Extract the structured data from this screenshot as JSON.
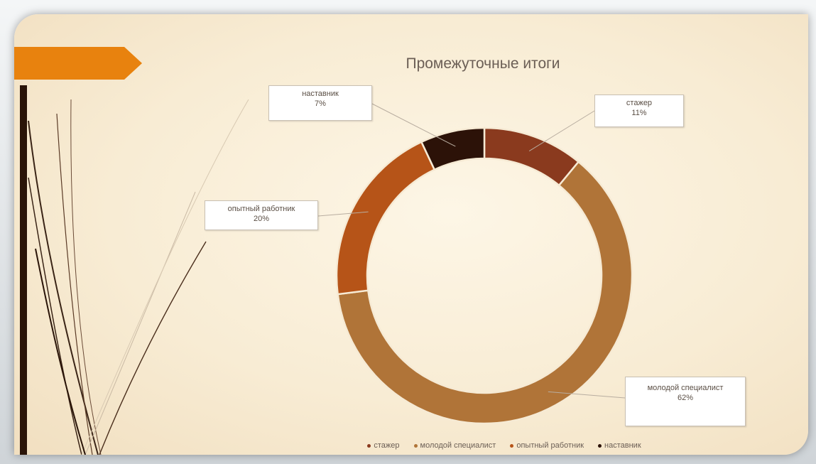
{
  "chart_data": {
    "type": "pie",
    "variant": "donut",
    "title": "Промежуточные итоги",
    "slices": [
      {
        "label": "стажер",
        "value": 11,
        "value_label": "11%",
        "color": "#8a3a1e"
      },
      {
        "label": "молодой специалист",
        "value": 62,
        "value_label": "62%",
        "color": "#b07438"
      },
      {
        "label": "опытный работник",
        "value": 20,
        "value_label": "20%",
        "color": "#b65418"
      },
      {
        "label": "наставник",
        "value": 7,
        "value_label": "7%",
        "color": "#2c1208"
      }
    ],
    "legend": {
      "placement": "bottom",
      "items": [
        "стажер",
        "молодой специалист",
        "опытный работник",
        "наставник"
      ]
    }
  },
  "colors": {
    "accent": "#e8820e",
    "slide_bar": "#2a1408",
    "background": "#f8ecd4"
  }
}
